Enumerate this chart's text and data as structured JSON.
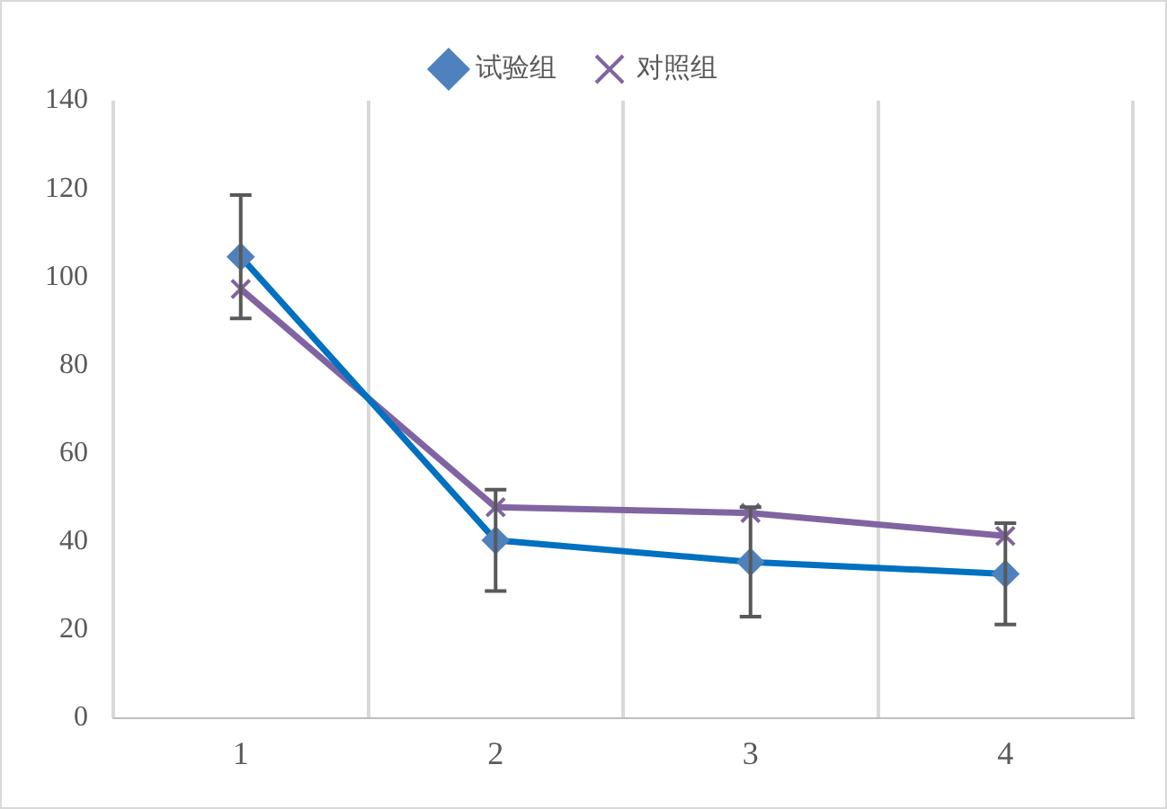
{
  "chart_data": {
    "type": "line",
    "categories": [
      "1",
      "2",
      "3",
      "4"
    ],
    "series": [
      {
        "name": "试验组",
        "color": "#0070c0",
        "marker": "diamond",
        "values": [
          104.6,
          40.3,
          35.4,
          32.7
        ],
        "errors": [
          14,
          11.5,
          12.4,
          11.5
        ]
      },
      {
        "name": "对照组",
        "color": "#8064a2",
        "marker": "cross",
        "values": [
          97.3,
          47.8,
          46.5,
          41.3
        ]
      }
    ],
    "ylim": [
      0,
      140
    ],
    "yticks": [
      0,
      20,
      40,
      60,
      80,
      100,
      120,
      140
    ],
    "grid": "x",
    "legend": "top"
  }
}
